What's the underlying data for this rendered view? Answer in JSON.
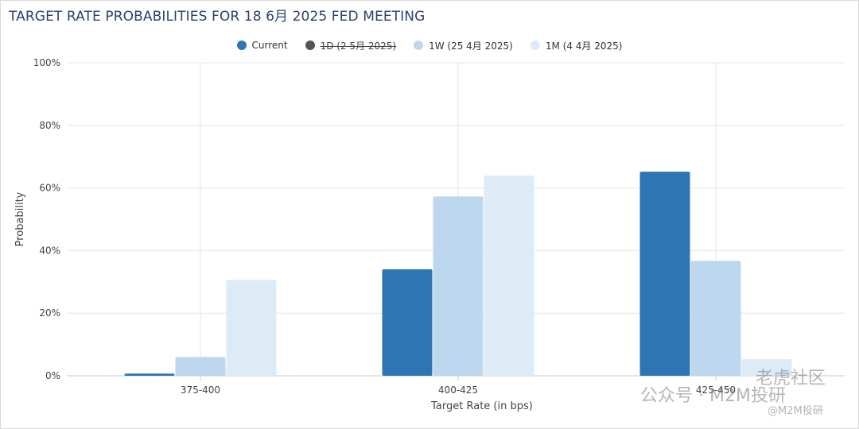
{
  "title": "TARGET RATE PROBABILITIES FOR 18 6月 2025 FED MEETING",
  "legend": [
    {
      "label": "Current",
      "color": "#2e75b6",
      "hidden": false
    },
    {
      "label": "1D (2 5月 2025)",
      "color": "#555555",
      "hidden": true
    },
    {
      "label": "1W (25 4月 2025)",
      "color": "#bdd7ee",
      "hidden": false
    },
    {
      "label": "1M (4 4月 2025)",
      "color": "#ddebf7",
      "hidden": false
    }
  ],
  "watermark": {
    "line1": "老虎社区",
    "line2": "公众号 · M2M投研",
    "line3": "@M2M投研"
  },
  "chart_data": {
    "type": "bar",
    "title": "TARGET RATE PROBABILITIES FOR 18 6月 2025 FED MEETING",
    "xlabel": "Target Rate (in bps)",
    "ylabel": "Probability",
    "categories": [
      "375-400",
      "400-425",
      "425-450"
    ],
    "ylim": [
      0,
      100
    ],
    "yticks": [
      "0%",
      "20%",
      "40%",
      "60%",
      "80%",
      "100%"
    ],
    "grid": true,
    "legend_position": "top",
    "series": [
      {
        "name": "Current",
        "color": "#2e75b6",
        "values": [
          0.7,
          34.0,
          65.2
        ]
      },
      {
        "name": "1W (25 4月 2025)",
        "color": "#bdd7ee",
        "values": [
          6.0,
          57.3,
          36.7
        ]
      },
      {
        "name": "1M (4 4月 2025)",
        "color": "#ddebf7",
        "values": [
          30.6,
          64.0,
          5.3
        ]
      }
    ]
  }
}
